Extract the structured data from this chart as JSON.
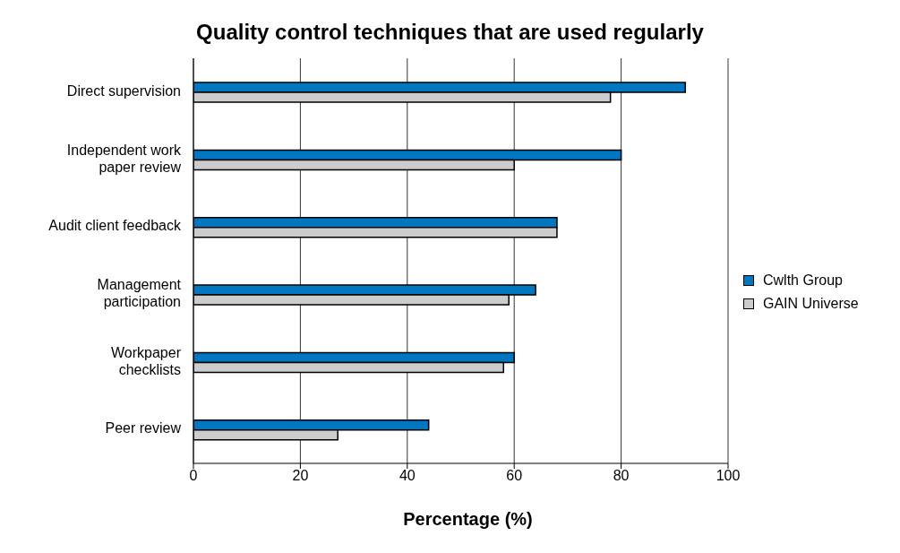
{
  "chart_data": {
    "type": "bar",
    "orientation": "horizontal",
    "title": "Quality control techniques that are used regularly",
    "xlabel": "Percentage (%)",
    "categories": [
      "Direct supervision",
      "Independent work\npaper review",
      "Audit client feedback",
      "Management\nparticipation",
      "Workpaper\nchecklists",
      "Peer review"
    ],
    "series": [
      {
        "name": "Cwlth Group",
        "color": "#0077c0",
        "values": [
          92,
          80,
          68,
          64,
          60,
          44
        ]
      },
      {
        "name": "GAIN Universe",
        "color": "#cccccc",
        "values": [
          78,
          60,
          68,
          59,
          58,
          27
        ]
      }
    ],
    "xlim": [
      0,
      100
    ],
    "xticks": [
      0,
      20,
      40,
      60,
      80,
      100
    ],
    "grid": "x",
    "legend": "right"
  }
}
